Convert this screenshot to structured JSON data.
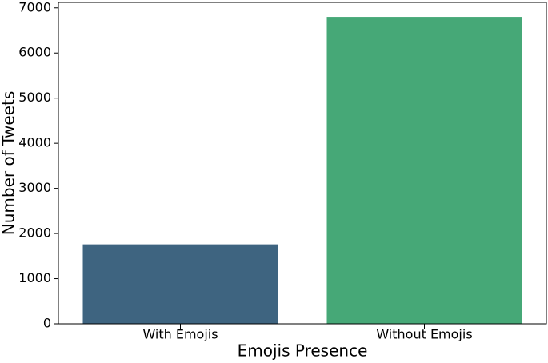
{
  "chart_data": {
    "type": "bar",
    "x_label": "Emojis Presence",
    "y_label": "Number of Tweets",
    "categories": [
      "With Emojis",
      "Without Emojis"
    ],
    "values": [
      1760,
      6800
    ],
    "colors": [
      "#3e6480",
      "#46a877"
    ],
    "ylim": [
      0,
      7120
    ],
    "yticks": [
      0,
      1000,
      2000,
      3000,
      4000,
      5000,
      6000,
      7000
    ],
    "grid": false
  }
}
